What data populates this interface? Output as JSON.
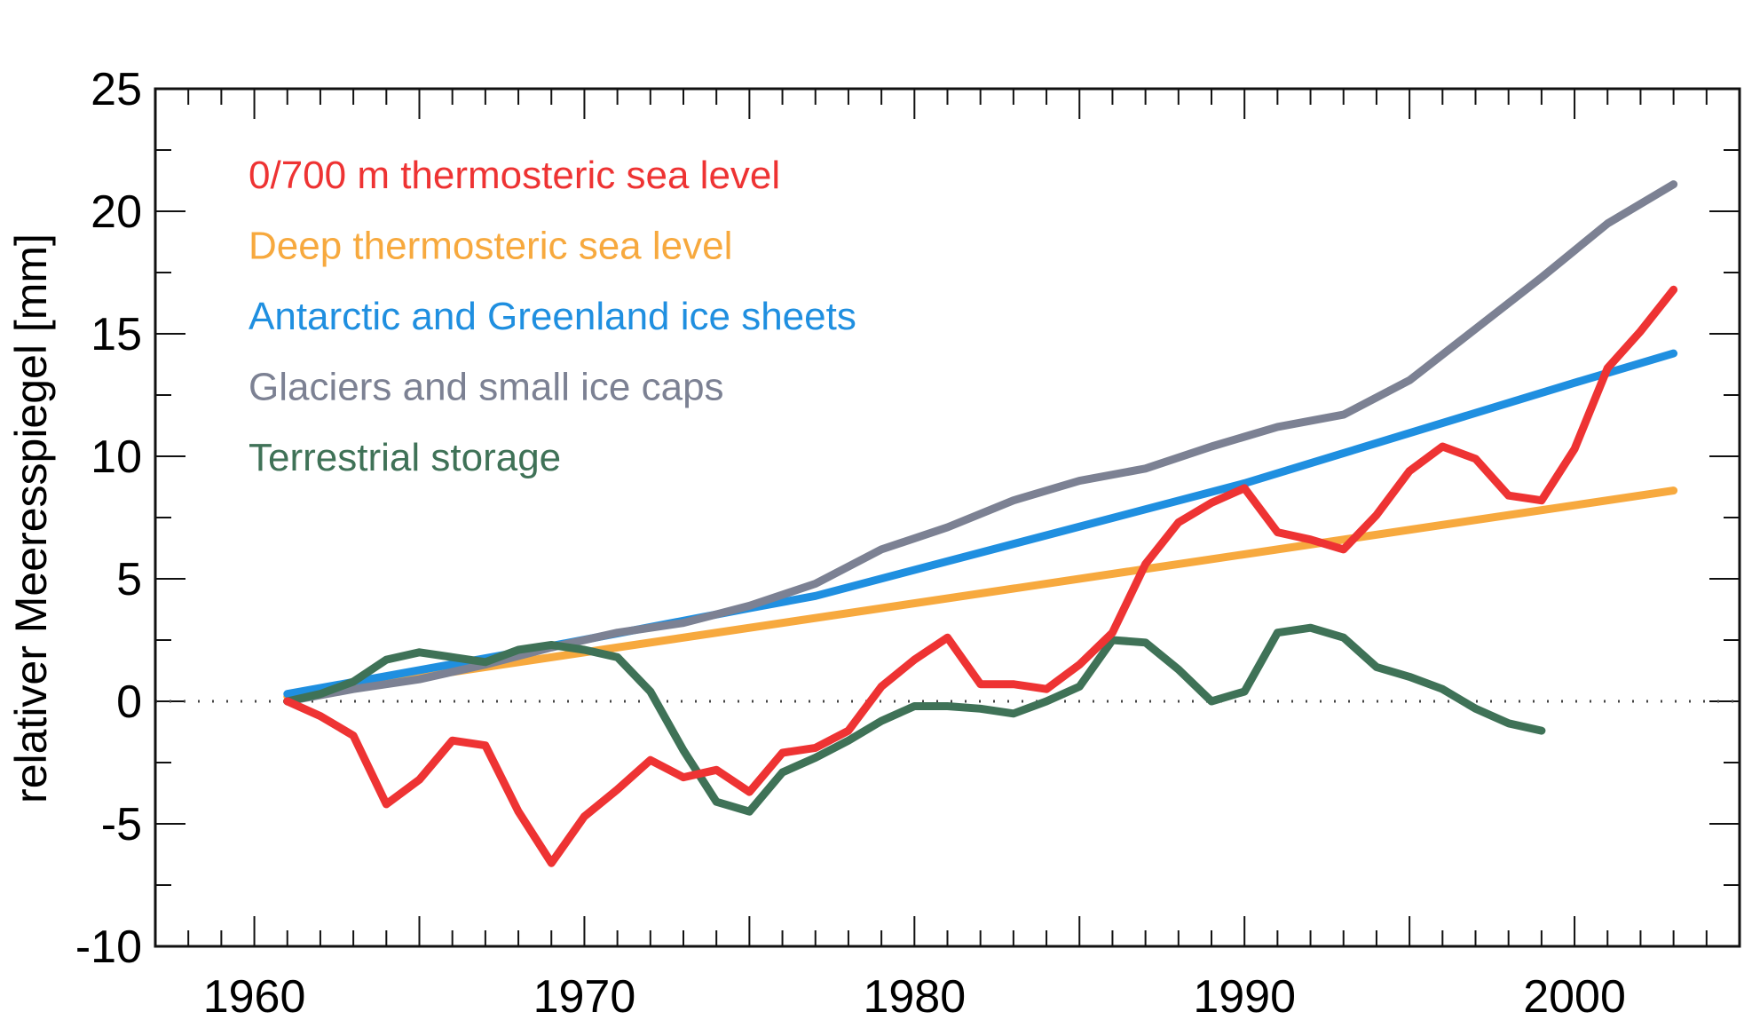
{
  "chart_data": {
    "type": "line",
    "title": "",
    "xlabel": "",
    "ylabel": "relativer Meeresspiegel [mm]",
    "xlim": [
      1957,
      2005
    ],
    "ylim": [
      -10,
      25
    ],
    "x_ticks": [
      "1960",
      "1970",
      "1980",
      "1990",
      "2000"
    ],
    "y_ticks": [
      "-10",
      "-5",
      "0",
      "5",
      "10",
      "15",
      "20",
      "25"
    ],
    "grid": false,
    "zero_line": "dotted",
    "legend": {
      "placement": "top-left"
    },
    "series": [
      {
        "name": "0/700 m thermosteric sea level",
        "color": "#ee3333",
        "x": [
          1961,
          1962,
          1963,
          1964,
          1965,
          1966,
          1967,
          1968,
          1969,
          1970,
          1971,
          1972,
          1973,
          1974,
          1975,
          1976,
          1977,
          1978,
          1979,
          1980,
          1981,
          1982,
          1983,
          1984,
          1985,
          1986,
          1987,
          1988,
          1989,
          1990,
          1991,
          1992,
          1993,
          1994,
          1995,
          1996,
          1997,
          1998,
          1999,
          2000,
          2001,
          2002,
          2003
        ],
        "values": [
          0,
          -0.6,
          -1.4,
          -4.2,
          -3.2,
          -1.6,
          -1.8,
          -4.5,
          -6.6,
          -4.7,
          -3.6,
          -2.4,
          -3.1,
          -2.8,
          -3.7,
          -2.1,
          -1.9,
          -1.2,
          0.6,
          1.7,
          2.6,
          0.7,
          0.7,
          0.5,
          1.5,
          2.8,
          5.6,
          7.3,
          8.1,
          8.7,
          6.9,
          6.6,
          6.2,
          7.6,
          9.4,
          10.4,
          9.9,
          8.4,
          8.2,
          10.3,
          13.6,
          15.1,
          16.8
        ]
      },
      {
        "name": "Deep thermosteric sea level",
        "color": "#f7a93e",
        "x": [
          1961,
          2003
        ],
        "values": [
          0.2,
          8.6
        ]
      },
      {
        "name": "Antarctic and Greenland ice sheets",
        "color": "#1f8fe0",
        "x": [
          1961,
          1968,
          1975,
          1977,
          1990,
          2000,
          2003
        ],
        "values": [
          0.3,
          2.0,
          3.8,
          4.3,
          8.9,
          13.0,
          14.2
        ]
      },
      {
        "name": "Glaciers and small ice caps",
        "color": "#7c8193",
        "x": [
          1961,
          1963,
          1965,
          1967,
          1969,
          1971,
          1973,
          1975,
          1977,
          1979,
          1981,
          1983,
          1985,
          1987,
          1989,
          1991,
          1993,
          1995,
          1997,
          1999,
          2001,
          2003
        ],
        "values": [
          0,
          0.5,
          0.9,
          1.5,
          2.2,
          2.8,
          3.2,
          3.9,
          4.8,
          6.2,
          7.1,
          8.2,
          9.0,
          9.5,
          10.4,
          11.2,
          11.7,
          13.1,
          15.2,
          17.3,
          19.5,
          21.1
        ]
      },
      {
        "name": "Terrestrial storage",
        "color": "#3f7257",
        "x": [
          1961,
          1962,
          1963,
          1964,
          1965,
          1966,
          1967,
          1968,
          1969,
          1970,
          1971,
          1972,
          1973,
          1974,
          1975,
          1976,
          1977,
          1978,
          1979,
          1980,
          1981,
          1982,
          1983,
          1984,
          1985,
          1986,
          1987,
          1988,
          1989,
          1990,
          1991,
          1992,
          1993,
          1994,
          1995,
          1996,
          1997,
          1998,
          1999
        ],
        "values": [
          0,
          0.3,
          0.8,
          1.7,
          2.0,
          1.8,
          1.6,
          2.1,
          2.3,
          2.1,
          1.8,
          0.4,
          -2.0,
          -4.1,
          -4.5,
          -2.9,
          -2.3,
          -1.6,
          -0.8,
          -0.2,
          -0.2,
          -0.3,
          -0.5,
          0,
          0.6,
          2.5,
          2.4,
          1.3,
          0,
          0.4,
          2.8,
          3.0,
          2.6,
          1.4,
          1.0,
          0.5,
          -0.3,
          -0.9,
          -1.2
        ]
      }
    ]
  }
}
